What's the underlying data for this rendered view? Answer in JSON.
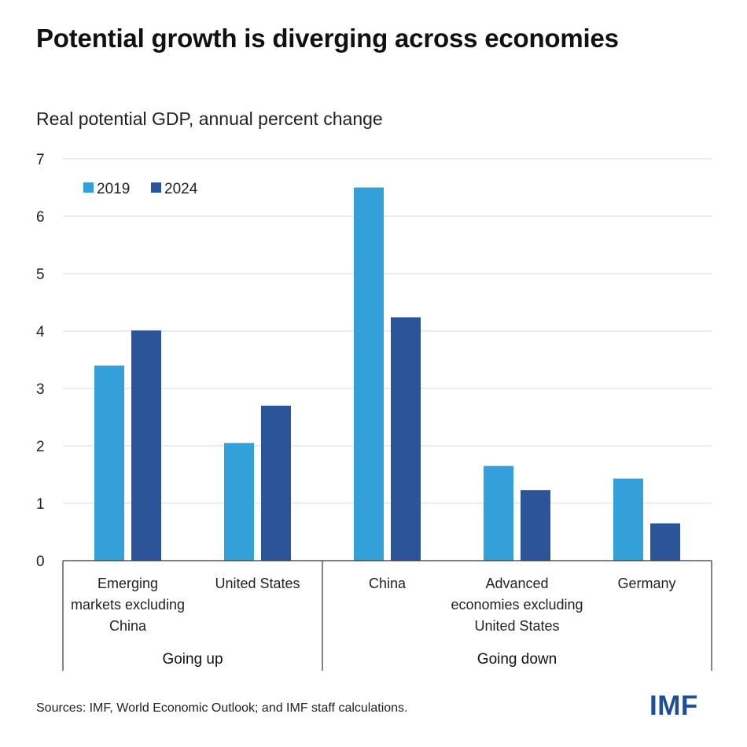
{
  "title": "Potential growth is diverging across economies",
  "subtitle": "Real potential GDP, annual percent change",
  "sources": "Sources: IMF, World Economic Outlook; and IMF staff calculations.",
  "logo": "IMF",
  "colors": {
    "series_2019": "#33a0da",
    "series_2024": "#2c5599",
    "grid": "#d9d9d9",
    "axis": "#333333",
    "logo": "#1f4e96"
  },
  "chart_data": {
    "type": "bar",
    "title": "Potential growth is diverging across economies",
    "ylabel": "Real potential GDP, annual percent change",
    "xlabel": "",
    "ylim": [
      0,
      7
    ],
    "yticks": [
      0,
      1,
      2,
      3,
      4,
      5,
      6,
      7
    ],
    "grid": true,
    "legend_position": "top-left",
    "categories": [
      [
        "Emerging",
        "markets excluding",
        "China"
      ],
      [
        "United States"
      ],
      [
        "China"
      ],
      [
        "Advanced",
        "economies excluding",
        "United States"
      ],
      [
        "Germany"
      ]
    ],
    "groups": [
      {
        "label": "Going up",
        "categories": [
          0,
          1
        ]
      },
      {
        "label": "Going down",
        "categories": [
          2,
          3,
          4
        ]
      }
    ],
    "series": [
      {
        "name": "2019",
        "values": [
          3.4,
          2.05,
          6.5,
          1.65,
          1.43
        ]
      },
      {
        "name": "2024",
        "values": [
          4.01,
          2.7,
          4.24,
          1.23,
          0.65
        ]
      }
    ]
  }
}
